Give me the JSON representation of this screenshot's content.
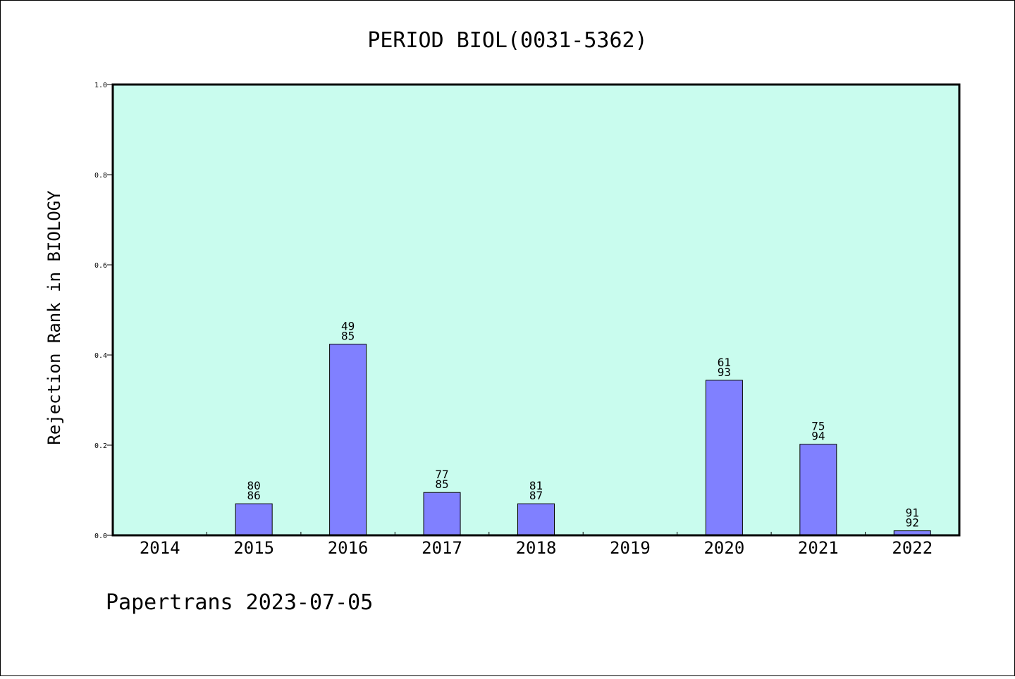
{
  "chart_data": {
    "type": "bar",
    "title": "PERIOD BIOL(0031-5362)",
    "xlabel": "",
    "ylabel": "Rejection Rank in BIOLOGY",
    "ylim": [
      0,
      1.0
    ],
    "yticks": [
      "0.0",
      "0.2",
      "0.4",
      "0.6",
      "0.8",
      "1.0"
    ],
    "categories": [
      "2014",
      "2015",
      "2016",
      "2017",
      "2018",
      "2019",
      "2020",
      "2021",
      "2022"
    ],
    "values": [
      0,
      0.07,
      0.424,
      0.095,
      0.07,
      0,
      0.344,
      0.202,
      0.01
    ],
    "labels": [
      null,
      [
        "80",
        "86"
      ],
      [
        "49",
        "85"
      ],
      [
        "77",
        "85"
      ],
      [
        "81",
        "87"
      ],
      null,
      [
        "61",
        "93"
      ],
      [
        "75",
        "94"
      ],
      [
        "91",
        "92"
      ]
    ],
    "colors": {
      "plot_bg": "#c9fcee",
      "bar": "#8080ff",
      "axis": "#000000"
    },
    "grid": false,
    "legend": "none"
  },
  "footer": "Papertrans 2023-07-05"
}
